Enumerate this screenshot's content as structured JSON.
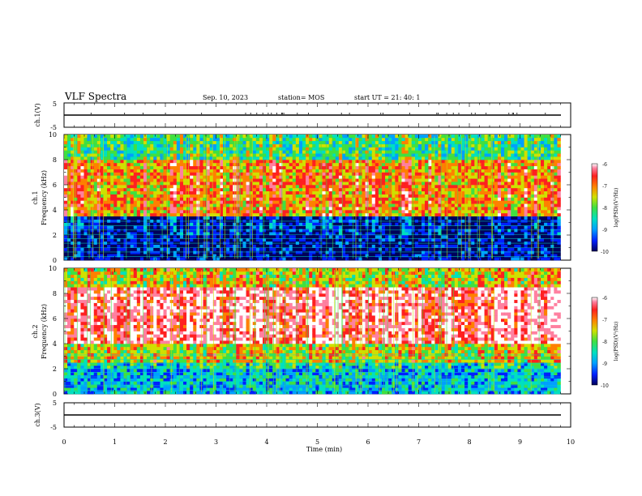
{
  "header": {
    "title": "VLF Spectra",
    "date": "Sep. 10, 2023",
    "station": "station= MOS",
    "start": "start  UT  =   21: 40: 1"
  },
  "panels": {
    "ch1v": {
      "label": "ch.1(V)",
      "ticks": [
        "5",
        "-5"
      ]
    },
    "ch1": {
      "label_top": "ch.1",
      "label_bottom": "Frequency (kHz)",
      "ticks": [
        "10",
        "8",
        "6",
        "4",
        "2",
        "0"
      ]
    },
    "ch2": {
      "label_top": "ch.2",
      "label_bottom": "Frequency (kHz)",
      "ticks": [
        "10",
        "8",
        "6",
        "4",
        "2",
        "0"
      ]
    },
    "ch3v": {
      "label": "ch.3(V)",
      "ticks": [
        "5",
        "-5"
      ]
    }
  },
  "xaxis": {
    "label": "Time (min)",
    "ticks": [
      "0",
      "1",
      "2",
      "3",
      "4",
      "5",
      "6",
      "7",
      "8",
      "9",
      "10"
    ]
  },
  "colorbar": {
    "label": "log(PSD)(V²/Hz)",
    "ticks": [
      "-6",
      "-7",
      "-8",
      "-9",
      "-10"
    ],
    "colors": [
      "#00005a",
      "#0020ff",
      "#00a0ff",
      "#00e0c0",
      "#40e040",
      "#d0e000",
      "#ff8000",
      "#ff2020",
      "#ff80a0",
      "#ffffff"
    ]
  },
  "chart_data": [
    {
      "type": "line",
      "name": "ch.1(V)",
      "ylabel": "ch.1(V)",
      "xlabel": "Time (min)",
      "xlim": [
        0,
        10
      ],
      "ylim": [
        -5,
        5
      ],
      "x": [
        0,
        9.8
      ],
      "y": [
        0,
        0
      ]
    },
    {
      "type": "heatmap",
      "ylabel": "Frequency (kHz)",
      "xlabel": "Time (min)",
      "xlim": [
        0,
        10
      ],
      "ylim": [
        0,
        10
      ],
      "data_end_min": 9.8,
      "colorbar_range": [
        -10,
        -6
      ],
      "colorbar_label": "log(PSD)(V²/Hz)",
      "bands": [
        {
          "f_range": [
            8,
            10
          ],
          "log_psd": -8.5
        },
        {
          "f_range": [
            3.5,
            8
          ],
          "log_psd": -7.5
        },
        {
          "f_range": [
            0,
            3.5
          ],
          "log_psd": -9.7
        }
      ]
    },
    {
      "type": "heatmap",
      "ylabel": "Frequency (kHz)",
      "xlabel": "Time (min)",
      "xlim": [
        0,
        10
      ],
      "ylim": [
        0,
        10
      ],
      "data_end_min": 9.8,
      "colorbar_range": [
        -10,
        -6
      ],
      "colorbar_label": "log(PSD)(V²/Hz)",
      "bands": [
        {
          "f_range": [
            8.5,
            10
          ],
          "log_psd": -8
        },
        {
          "f_range": [
            4,
            8.5
          ],
          "log_psd": -6.8
        },
        {
          "f_range": [
            2.5,
            4
          ],
          "log_psd": -8
        },
        {
          "f_range": [
            0,
            2.5
          ],
          "log_psd": -8.8
        }
      ]
    },
    {
      "type": "line",
      "name": "ch.3(V)",
      "ylabel": "ch.3(V)",
      "xlabel": "Time (min)",
      "xlim": [
        0,
        10
      ],
      "ylim": [
        -5,
        5
      ],
      "x": [
        0,
        9.8
      ],
      "y": [
        0,
        0
      ]
    }
  ]
}
